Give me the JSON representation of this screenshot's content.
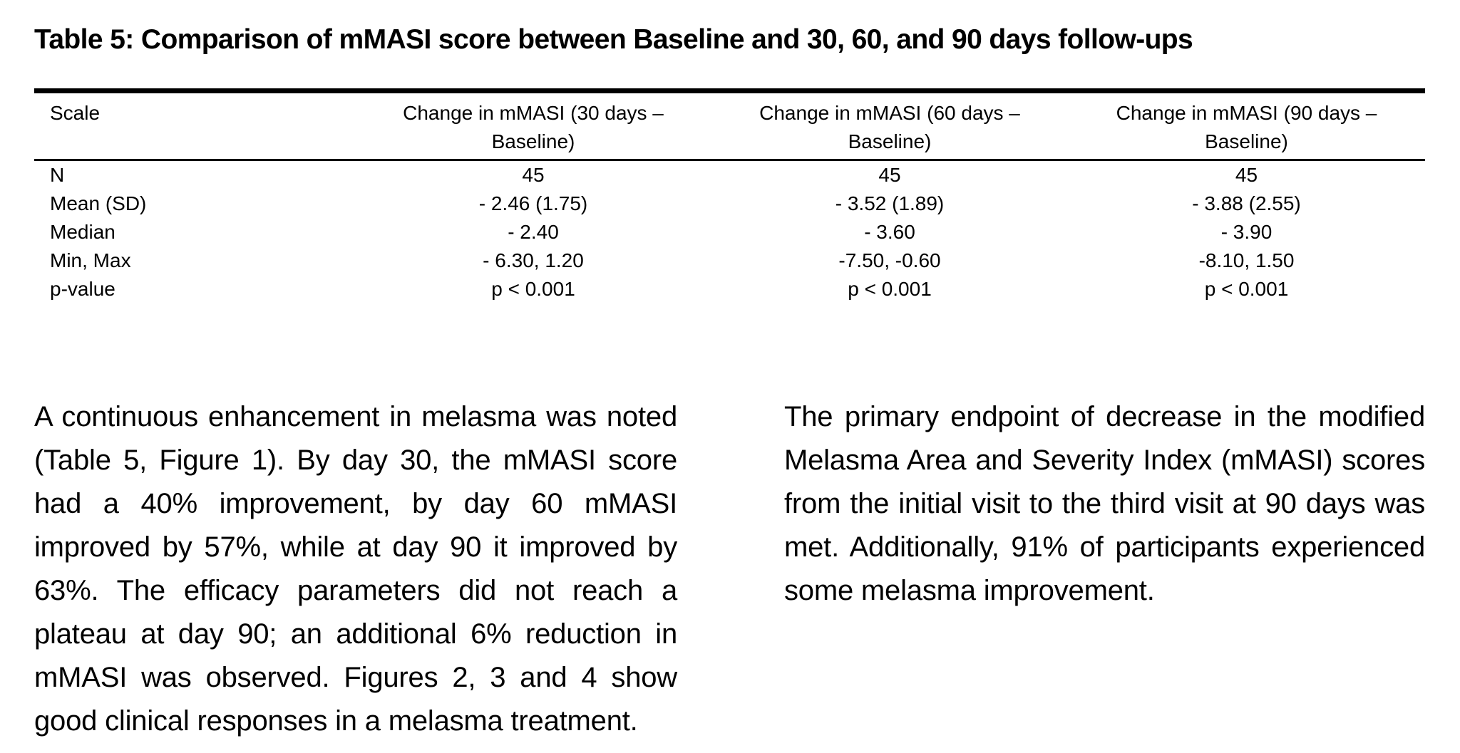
{
  "table": {
    "title": "Table 5: Comparison of mMASI score between Baseline and 30, 60, and 90 days follow-ups",
    "headers": [
      "Scale",
      "Change in mMASI (30 days – Baseline)",
      "Change in mMASI (60 days – Baseline)",
      "Change in mMASI (90 days – Baseline)"
    ],
    "rows": [
      [
        "N",
        "45",
        "45",
        "45"
      ],
      [
        "Mean (SD)",
        "- 2.46 (1.75)",
        "- 3.52 (1.89)",
        "- 3.88 (2.55)"
      ],
      [
        "Median",
        "- 2.40",
        "- 3.60",
        "- 3.90"
      ],
      [
        "Min, Max",
        "- 6.30, 1.20",
        "-7.50, -0.60",
        "-8.10, 1.50"
      ],
      [
        "p-value",
        "p < 0.001",
        "p < 0.001",
        "p < 0.001"
      ]
    ]
  },
  "paragraphs": {
    "left": "A continuous enhancement in melasma was noted (Table 5, Figure 1). By day 30, the mMASI score had a 40% improvement, by day 60 mMASI improved by 57%, while at day 90 it improved by 63%. The efficacy parameters did not reach a plateau at day 90; an additional 6% reduction in mMASI was observed. Figures 2, 3 and 4 show good clinical responses in a melasma treatment.",
    "right": "The primary endpoint of decrease in the modified Melasma Area and Severity Index (mMASI) scores from the initial visit to the third visit at 90 days was met. Additionally, 91% of participants experienced some melasma improvement."
  }
}
